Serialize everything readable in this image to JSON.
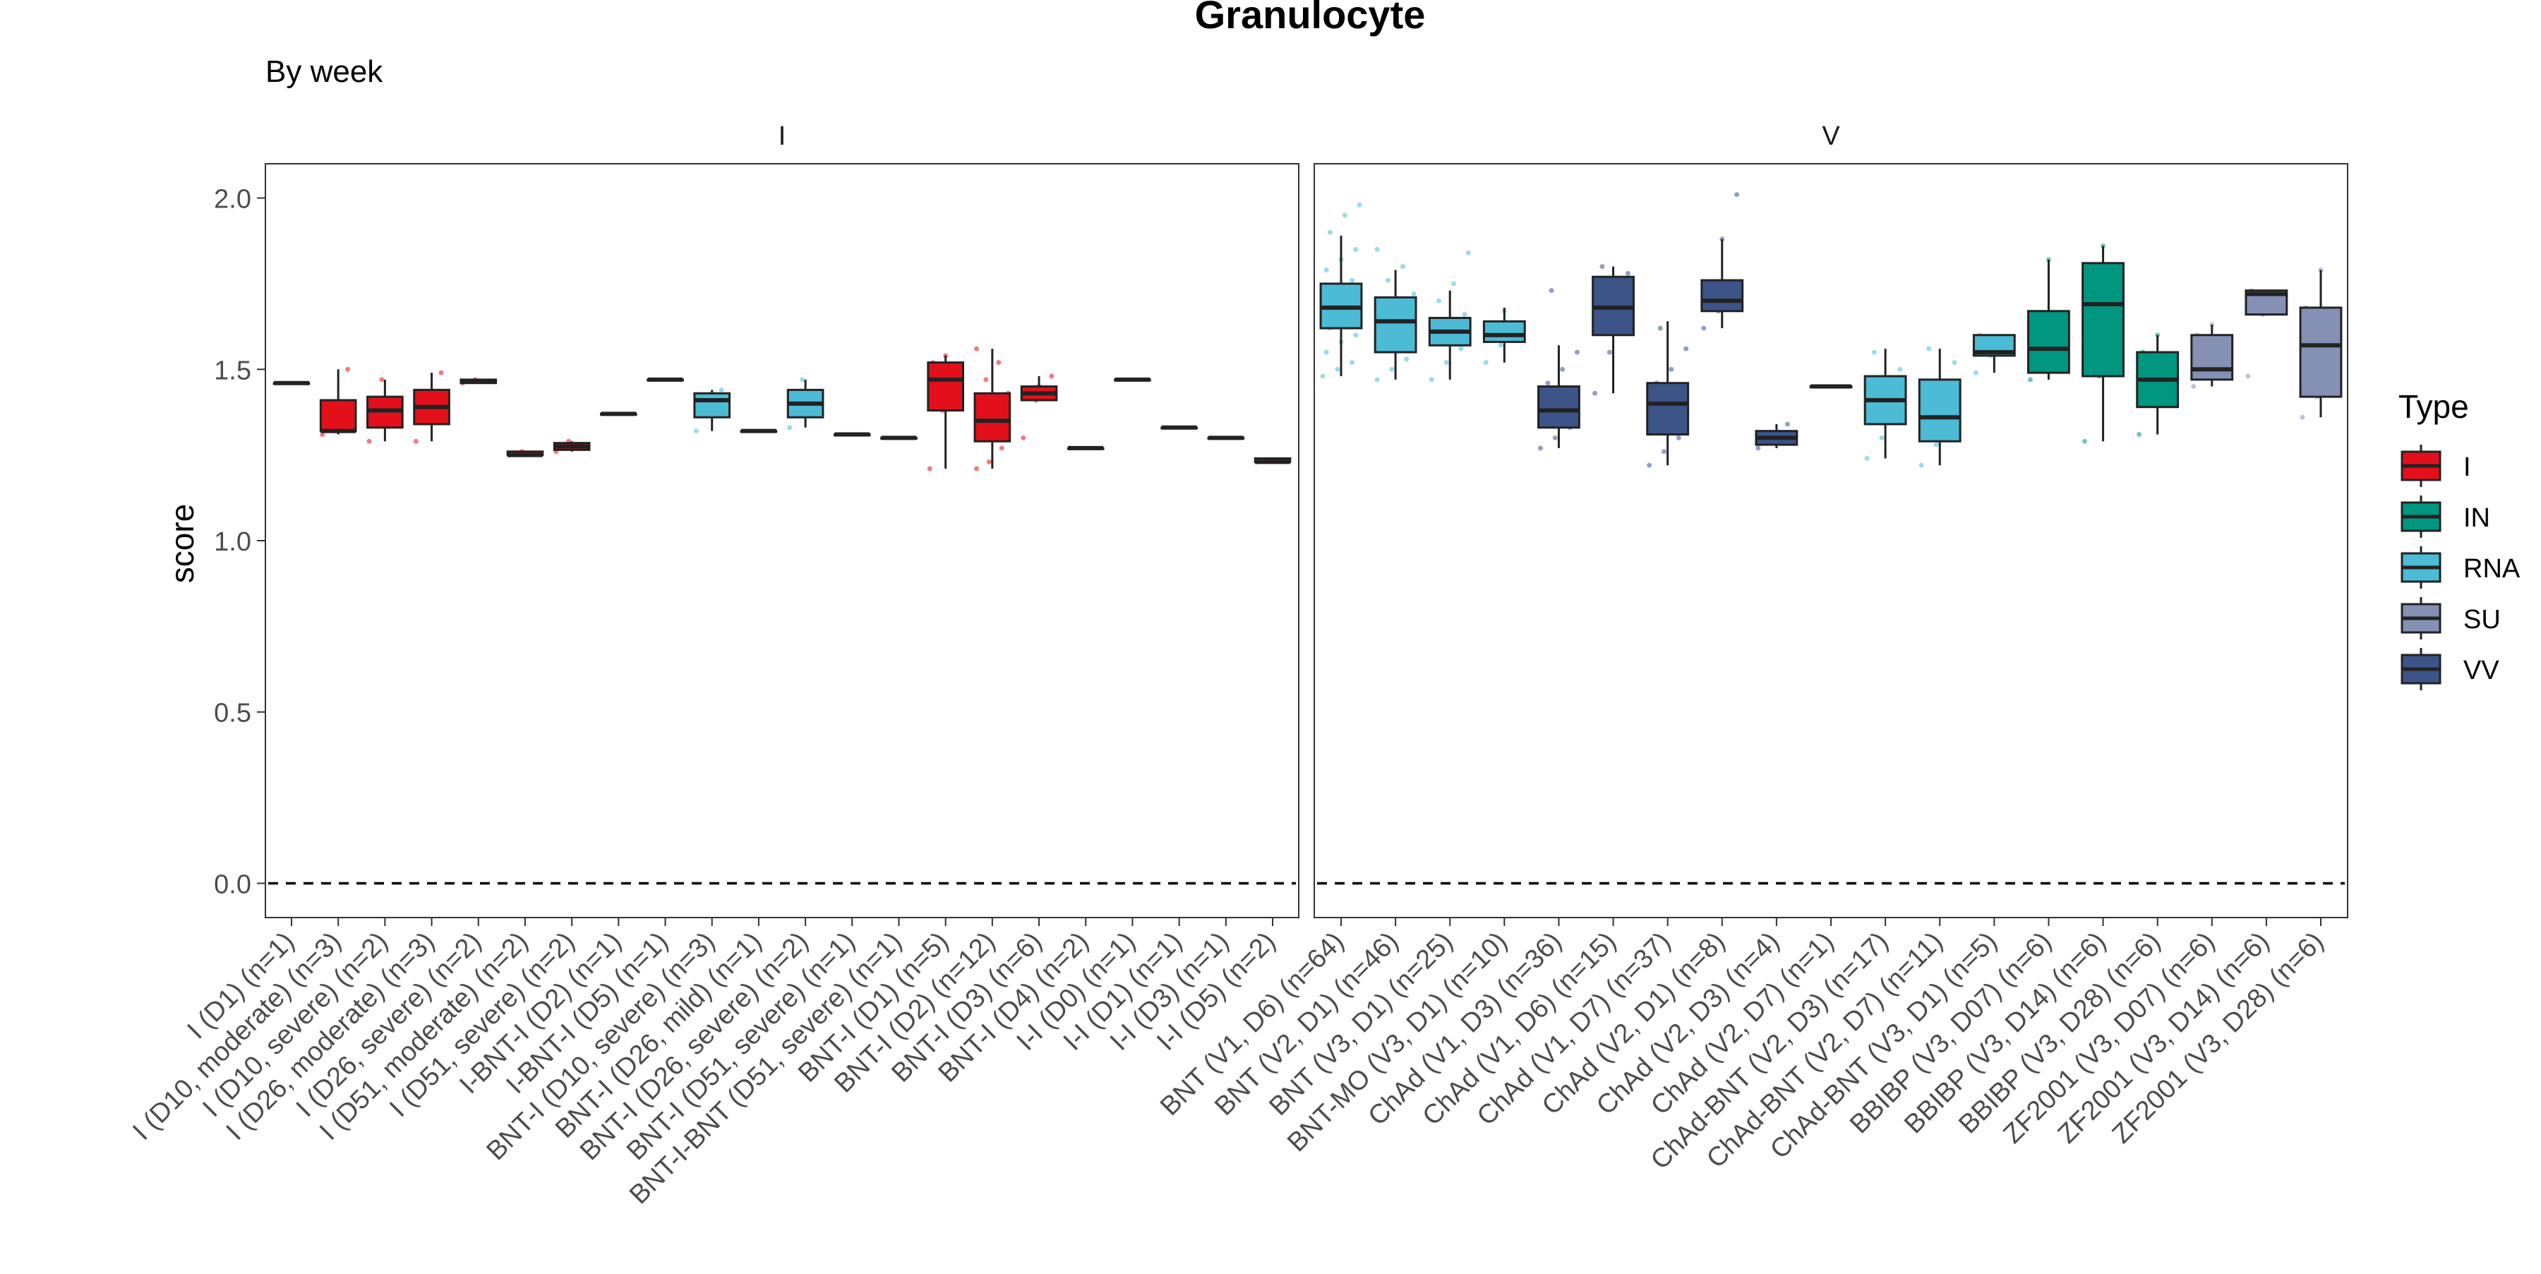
{
  "chart_data": {
    "type": "boxplot",
    "title": "Granulocyte",
    "subtitle": "By week",
    "ylabel": "score",
    "xlabel": "",
    "ylim": [
      -0.1,
      2.1
    ],
    "yticks": [
      0.0,
      0.5,
      1.0,
      1.5,
      2.0
    ],
    "ytick_labels": [
      "0.0",
      "0.5",
      "1.0",
      "1.5",
      "2.0"
    ],
    "reference_line": 0.0,
    "grid": false,
    "legend": {
      "title": "Type",
      "position": "right",
      "entries": [
        {
          "name": "I",
          "color": "#E3101B"
        },
        {
          "name": "IN",
          "color": "#009680"
        },
        {
          "name": "RNA",
          "color": "#4CBBD5"
        },
        {
          "name": "SU",
          "color": "#8491B4"
        },
        {
          "name": "VV",
          "color": "#3C5488"
        }
      ]
    },
    "panels": [
      {
        "label": "I",
        "categories": [
          {
            "label": "I (D1) (n=1)",
            "type": "I",
            "min": 1.46,
            "q1": 1.46,
            "median": 1.46,
            "q3": 1.46,
            "max": 1.46,
            "points": []
          },
          {
            "label": "I (D10, moderate) (n=3)",
            "type": "I",
            "min": 1.31,
            "q1": 1.32,
            "median": 1.32,
            "q3": 1.41,
            "max": 1.5,
            "points": [
              1.31,
              1.32,
              1.5
            ]
          },
          {
            "label": "I (D10, severe) (n=2)",
            "type": "I",
            "min": 1.29,
            "q1": 1.33,
            "median": 1.38,
            "q3": 1.42,
            "max": 1.47,
            "points": [
              1.29,
              1.47
            ]
          },
          {
            "label": "I (D26, moderate) (n=3)",
            "type": "I",
            "min": 1.29,
            "q1": 1.34,
            "median": 1.39,
            "q3": 1.44,
            "max": 1.49,
            "points": [
              1.29,
              1.39,
              1.49
            ]
          },
          {
            "label": "I (D26, severe) (n=2)",
            "type": "I",
            "min": 1.46,
            "q1": 1.46,
            "median": 1.465,
            "q3": 1.47,
            "max": 1.47,
            "points": [
              1.46,
              1.47
            ]
          },
          {
            "label": "I (D51, moderate) (n=2)",
            "type": "I",
            "min": 1.25,
            "q1": 1.25,
            "median": 1.25,
            "q3": 1.26,
            "max": 1.26,
            "points": [
              1.25,
              1.26
            ]
          },
          {
            "label": "I (D51, severe) (n=2)",
            "type": "I",
            "min": 1.26,
            "q1": 1.265,
            "median": 1.275,
            "q3": 1.285,
            "max": 1.29,
            "points": [
              1.26,
              1.29
            ]
          },
          {
            "label": "I-BNT-I (D2) (n=1)",
            "type": "RNA",
            "min": 1.37,
            "q1": 1.37,
            "median": 1.37,
            "q3": 1.37,
            "max": 1.37,
            "points": []
          },
          {
            "label": "I-BNT-I (D5) (n=1)",
            "type": "RNA",
            "min": 1.47,
            "q1": 1.47,
            "median": 1.47,
            "q3": 1.47,
            "max": 1.47,
            "points": []
          },
          {
            "label": "BNT-I (D10, severe) (n=3)",
            "type": "RNA",
            "min": 1.32,
            "q1": 1.36,
            "median": 1.41,
            "q3": 1.43,
            "max": 1.44,
            "points": [
              1.32,
              1.41,
              1.44
            ]
          },
          {
            "label": "BNT-I (D26, mild) (n=1)",
            "type": "RNA",
            "min": 1.32,
            "q1": 1.32,
            "median": 1.32,
            "q3": 1.32,
            "max": 1.32,
            "points": []
          },
          {
            "label": "BNT-I (D26, severe) (n=2)",
            "type": "RNA",
            "min": 1.33,
            "q1": 1.36,
            "median": 1.4,
            "q3": 1.44,
            "max": 1.47,
            "points": [
              1.33,
              1.47
            ]
          },
          {
            "label": "BNT-I (D51, severe) (n=1)",
            "type": "RNA",
            "min": 1.31,
            "q1": 1.31,
            "median": 1.31,
            "q3": 1.31,
            "max": 1.31,
            "points": []
          },
          {
            "label": "BNT-I-BNT (D51, severe) (n=1)",
            "type": "RNA",
            "min": 1.3,
            "q1": 1.3,
            "median": 1.3,
            "q3": 1.3,
            "max": 1.3,
            "points": []
          },
          {
            "label": "BNT-I (D1) (n=5)",
            "type": "I",
            "min": 1.21,
            "q1": 1.38,
            "median": 1.47,
            "q3": 1.52,
            "max": 1.54,
            "points": [
              1.21,
              1.38,
              1.47,
              1.52,
              1.54
            ]
          },
          {
            "label": "BNT-I (D2) (n=12)",
            "type": "I",
            "min": 1.21,
            "q1": 1.29,
            "median": 1.35,
            "q3": 1.43,
            "max": 1.56,
            "points": [
              1.21,
              1.23,
              1.27,
              1.3,
              1.33,
              1.35,
              1.36,
              1.4,
              1.43,
              1.47,
              1.52,
              1.56
            ]
          },
          {
            "label": "BNT-I (D3) (n=6)",
            "type": "I",
            "min": 1.41,
            "q1": 1.41,
            "median": 1.43,
            "q3": 1.45,
            "max": 1.48,
            "points": [
              1.3,
              1.41,
              1.42,
              1.44,
              1.45,
              1.48
            ]
          },
          {
            "label": "BNT-I (D4) (n=2)",
            "type": "I",
            "min": 1.27,
            "q1": 1.27,
            "median": 1.27,
            "q3": 1.27,
            "max": 1.27,
            "points": [
              1.27
            ]
          },
          {
            "label": "I-I (D0) (n=1)",
            "type": "I",
            "min": 1.47,
            "q1": 1.47,
            "median": 1.47,
            "q3": 1.47,
            "max": 1.47,
            "points": []
          },
          {
            "label": "I-I (D1) (n=1)",
            "type": "I",
            "min": 1.33,
            "q1": 1.33,
            "median": 1.33,
            "q3": 1.33,
            "max": 1.33,
            "points": []
          },
          {
            "label": "I-I (D3) (n=1)",
            "type": "I",
            "min": 1.3,
            "q1": 1.3,
            "median": 1.3,
            "q3": 1.3,
            "max": 1.3,
            "points": []
          },
          {
            "label": "I-I (D5) (n=2)",
            "type": "I",
            "min": 1.23,
            "q1": 1.23,
            "median": 1.23,
            "q3": 1.24,
            "max": 1.24,
            "points": [
              1.23
            ]
          }
        ]
      },
      {
        "label": "V",
        "categories": [
          {
            "label": "BNT (V1, D6) (n=64)",
            "type": "RNA",
            "min": 1.48,
            "q1": 1.62,
            "median": 1.68,
            "q3": 1.75,
            "max": 1.89,
            "points": [
              1.48,
              1.5,
              1.52,
              1.55,
              1.58,
              1.6,
              1.62,
              1.64,
              1.66,
              1.68,
              1.7,
              1.72,
              1.74,
              1.76,
              1.79,
              1.82,
              1.85,
              1.9,
              1.95,
              1.98
            ]
          },
          {
            "label": "BNT (V2, D1) (n=46)",
            "type": "RNA",
            "min": 1.47,
            "q1": 1.55,
            "median": 1.64,
            "q3": 1.71,
            "max": 1.79,
            "points": [
              1.47,
              1.5,
              1.53,
              1.56,
              1.6,
              1.63,
              1.66,
              1.69,
              1.72,
              1.76,
              1.8,
              1.85
            ]
          },
          {
            "label": "BNT (V3, D1) (n=25)",
            "type": "RNA",
            "min": 1.47,
            "q1": 1.57,
            "median": 1.61,
            "q3": 1.65,
            "max": 1.73,
            "points": [
              1.47,
              1.52,
              1.56,
              1.6,
              1.63,
              1.66,
              1.7,
              1.75,
              1.84
            ]
          },
          {
            "label": "BNT-MO (V3, D1) (n=10)",
            "type": "RNA",
            "min": 1.52,
            "q1": 1.58,
            "median": 1.6,
            "q3": 1.64,
            "max": 1.68,
            "points": [
              1.52,
              1.57,
              1.6,
              1.63,
              1.67
            ]
          },
          {
            "label": "ChAd (V1, D3) (n=36)",
            "type": "VV",
            "min": 1.27,
            "q1": 1.33,
            "median": 1.38,
            "q3": 1.45,
            "max": 1.57,
            "points": [
              1.27,
              1.3,
              1.33,
              1.36,
              1.39,
              1.42,
              1.46,
              1.5,
              1.55,
              1.73
            ]
          },
          {
            "label": "ChAd (V1, D6) (n=15)",
            "type": "VV",
            "min": 1.43,
            "q1": 1.6,
            "median": 1.68,
            "q3": 1.77,
            "max": 1.8,
            "points": [
              1.43,
              1.55,
              1.62,
              1.68,
              1.74,
              1.78,
              1.8
            ]
          },
          {
            "label": "ChAd (V1, D7) (n=37)",
            "type": "VV",
            "min": 1.22,
            "q1": 1.31,
            "median": 1.4,
            "q3": 1.46,
            "max": 1.64,
            "points": [
              1.22,
              1.26,
              1.3,
              1.34,
              1.38,
              1.42,
              1.46,
              1.5,
              1.56,
              1.62
            ]
          },
          {
            "label": "ChAd (V2, D1) (n=8)",
            "type": "VV",
            "min": 1.62,
            "q1": 1.67,
            "median": 1.7,
            "q3": 1.76,
            "max": 1.88,
            "points": [
              1.62,
              1.67,
              1.7,
              1.74,
              1.88,
              2.01
            ]
          },
          {
            "label": "ChAd (V2, D3) (n=4)",
            "type": "VV",
            "min": 1.27,
            "q1": 1.28,
            "median": 1.3,
            "q3": 1.32,
            "max": 1.34,
            "points": [
              1.27,
              1.3,
              1.34
            ]
          },
          {
            "label": "ChAd (V2, D7) (n=1)",
            "type": "VV",
            "min": 1.45,
            "q1": 1.45,
            "median": 1.45,
            "q3": 1.45,
            "max": 1.45,
            "points": []
          },
          {
            "label": "ChAd-BNT (V2, D3) (n=17)",
            "type": "RNA",
            "min": 1.24,
            "q1": 1.34,
            "median": 1.41,
            "q3": 1.48,
            "max": 1.56,
            "points": [
              1.24,
              1.3,
              1.35,
              1.4,
              1.45,
              1.5,
              1.55
            ]
          },
          {
            "label": "ChAd-BNT (V2, D7) (n=11)",
            "type": "RNA",
            "min": 1.22,
            "q1": 1.29,
            "median": 1.36,
            "q3": 1.47,
            "max": 1.56,
            "points": [
              1.22,
              1.28,
              1.33,
              1.38,
              1.45,
              1.52,
              1.56
            ]
          },
          {
            "label": "ChAd-BNT (V3, D1) (n=5)",
            "type": "RNA",
            "min": 1.49,
            "q1": 1.54,
            "median": 1.55,
            "q3": 1.6,
            "max": 1.6,
            "points": [
              1.49,
              1.54,
              1.58,
              1.6
            ]
          },
          {
            "label": "BBIBP (V3, D07) (n=6)",
            "type": "IN",
            "min": 1.47,
            "q1": 1.49,
            "median": 1.56,
            "q3": 1.67,
            "max": 1.82,
            "points": [
              1.47,
              1.5,
              1.56,
              1.62,
              1.82
            ]
          },
          {
            "label": "BBIBP (V3, D14) (n=6)",
            "type": "IN",
            "min": 1.29,
            "q1": 1.48,
            "median": 1.69,
            "q3": 1.81,
            "max": 1.86,
            "points": [
              1.29,
              1.48,
              1.69,
              1.8,
              1.86
            ]
          },
          {
            "label": "BBIBP (V3, D28) (n=6)",
            "type": "IN",
            "min": 1.31,
            "q1": 1.39,
            "median": 1.47,
            "q3": 1.55,
            "max": 1.6,
            "points": [
              1.31,
              1.4,
              1.47,
              1.55,
              1.6
            ]
          },
          {
            "label": "ZF2001 (V3, D07) (n=6)",
            "type": "SU",
            "min": 1.45,
            "q1": 1.47,
            "median": 1.5,
            "q3": 1.6,
            "max": 1.63,
            "points": [
              1.45,
              1.48,
              1.52,
              1.6,
              1.63
            ]
          },
          {
            "label": "ZF2001 (V3, D14) (n=6)",
            "type": "SU",
            "min": 1.66,
            "q1": 1.66,
            "median": 1.72,
            "q3": 1.73,
            "max": 1.73,
            "points": [
              1.48,
              1.66,
              1.72,
              1.73
            ]
          },
          {
            "label": "ZF2001 (V3, D28) (n=6)",
            "type": "SU",
            "min": 1.36,
            "q1": 1.42,
            "median": 1.57,
            "q3": 1.68,
            "max": 1.79,
            "points": [
              1.36,
              1.42,
              1.57,
              1.68,
              1.79
            ]
          }
        ]
      }
    ]
  }
}
